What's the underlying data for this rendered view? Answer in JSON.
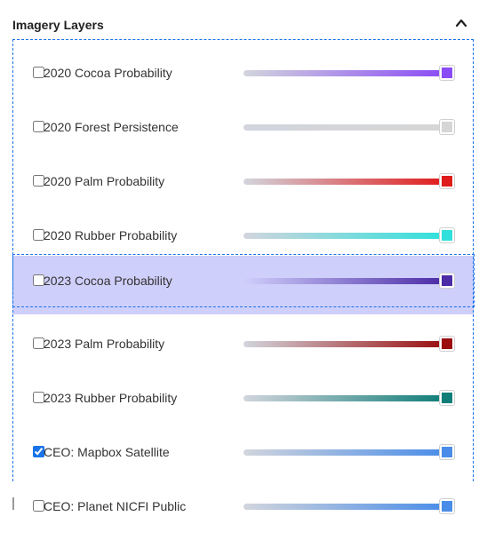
{
  "panel": {
    "title": "Imagery Layers",
    "collapse_icon": "chevron-up-icon"
  },
  "layers": [
    {
      "label": "2020 Cocoa Probability",
      "checked": false,
      "color": "#8a4cf5"
    },
    {
      "label": "2020 Forest Persistence",
      "checked": false,
      "color": "#d6d6d6"
    },
    {
      "label": "2020 Palm Probability",
      "checked": false,
      "color": "#e01b1b"
    },
    {
      "label": "2020 Rubber Probability",
      "checked": false,
      "color": "#2fe0dc"
    },
    {
      "label": "2023 Cocoa Probability",
      "checked": false,
      "color": "#4b2ba6",
      "highlighted": true
    },
    {
      "label": "2023 Palm Probability",
      "checked": false,
      "color": "#9a0e0e"
    },
    {
      "label": "2023 Rubber Probability",
      "checked": false,
      "color": "#0f7d78"
    },
    {
      "label": "CEO: Mapbox Satellite",
      "checked": true,
      "color": "#4a8de8"
    },
    {
      "label": "CEO: Planet NICFI Public",
      "checked": false,
      "color": "#4a8de8"
    }
  ]
}
